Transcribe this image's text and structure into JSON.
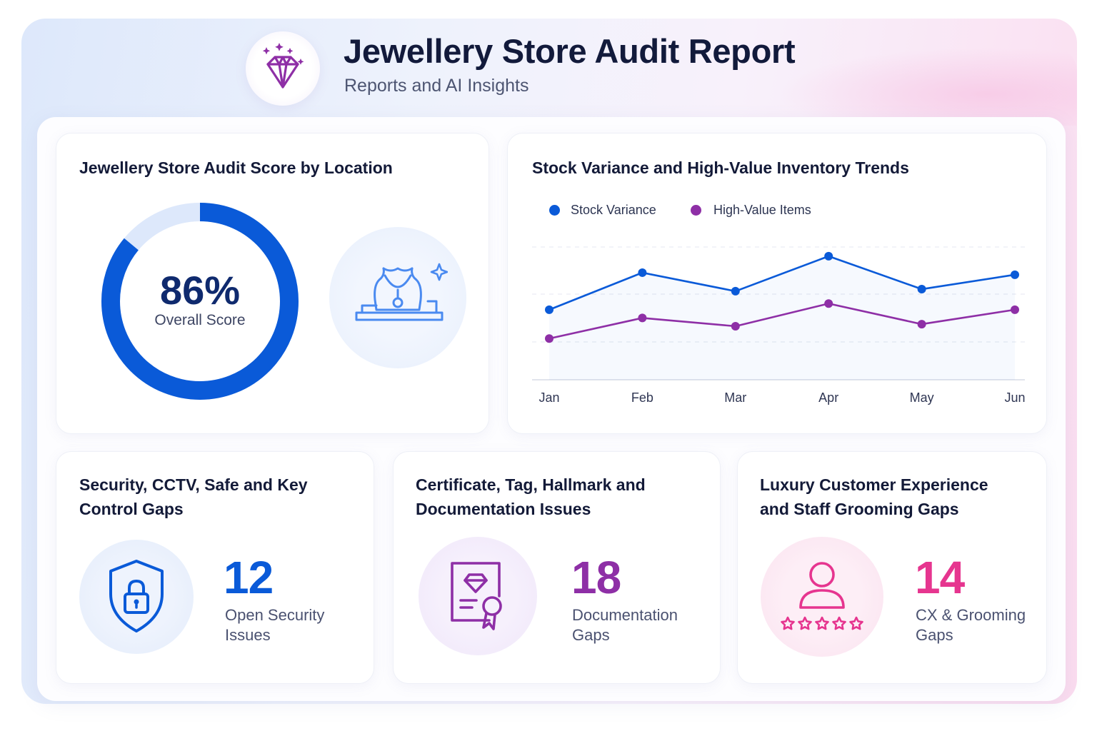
{
  "header": {
    "title": "Jewellery Store Audit Report",
    "subtitle": "Reports and AI Insights",
    "logo_icon": "diamond-icon"
  },
  "score_card": {
    "title": "Jewellery Store Audit Score by Location",
    "value": "86%",
    "label": "Overall Score",
    "score_fraction": 0.86,
    "ring_color": "#0a5ad8",
    "ring_track_color": "#dde8fb",
    "illustration_icon": "necklace-display-icon"
  },
  "trend_card": {
    "title": "Stock Variance and High-Value Inventory Trends",
    "legend": [
      {
        "label": "Stock Variance",
        "color": "#0a5ad8"
      },
      {
        "label": "High-Value Items",
        "color": "#8e2fa6"
      }
    ]
  },
  "chart_data": {
    "type": "line",
    "title": "Stock Variance and High-Value Inventory Trends",
    "x": [
      "Jan",
      "Feb",
      "Mar",
      "Apr",
      "May",
      "Jun"
    ],
    "series": [
      {
        "name": "Stock Variance",
        "values": [
          64,
          82,
          73,
          90,
          74,
          81
        ],
        "color": "#0a5ad8"
      },
      {
        "name": "High-Value Items",
        "values": [
          50,
          60,
          56,
          67,
          57,
          64
        ],
        "color": "#8e2fa6"
      }
    ],
    "ylim": [
      30,
      100
    ],
    "grid": true,
    "legend_position": "top-left"
  },
  "metrics": [
    {
      "title_line1": "Security, CCTV, Safe and Key",
      "title_line2": "Control Gaps",
      "value": "12",
      "label_line1": "Open Security",
      "label_line2": "Issues",
      "color": "#0a5ad8",
      "icon": "shield-lock-icon"
    },
    {
      "title_line1": "Certificate, Tag, Hallmark and",
      "title_line2": "Documentation Issues",
      "value": "18",
      "label_line1": "Documentation",
      "label_line2": "Gaps",
      "color": "#8e2fa6",
      "icon": "certificate-icon"
    },
    {
      "title_line1": "Luxury Customer Experience",
      "title_line2": "and Staff Grooming Gaps",
      "value": "14",
      "label_line1": "CX & Grooming",
      "label_line2": "Gaps",
      "color": "#e6358f",
      "icon": "user-rating-icon"
    }
  ]
}
